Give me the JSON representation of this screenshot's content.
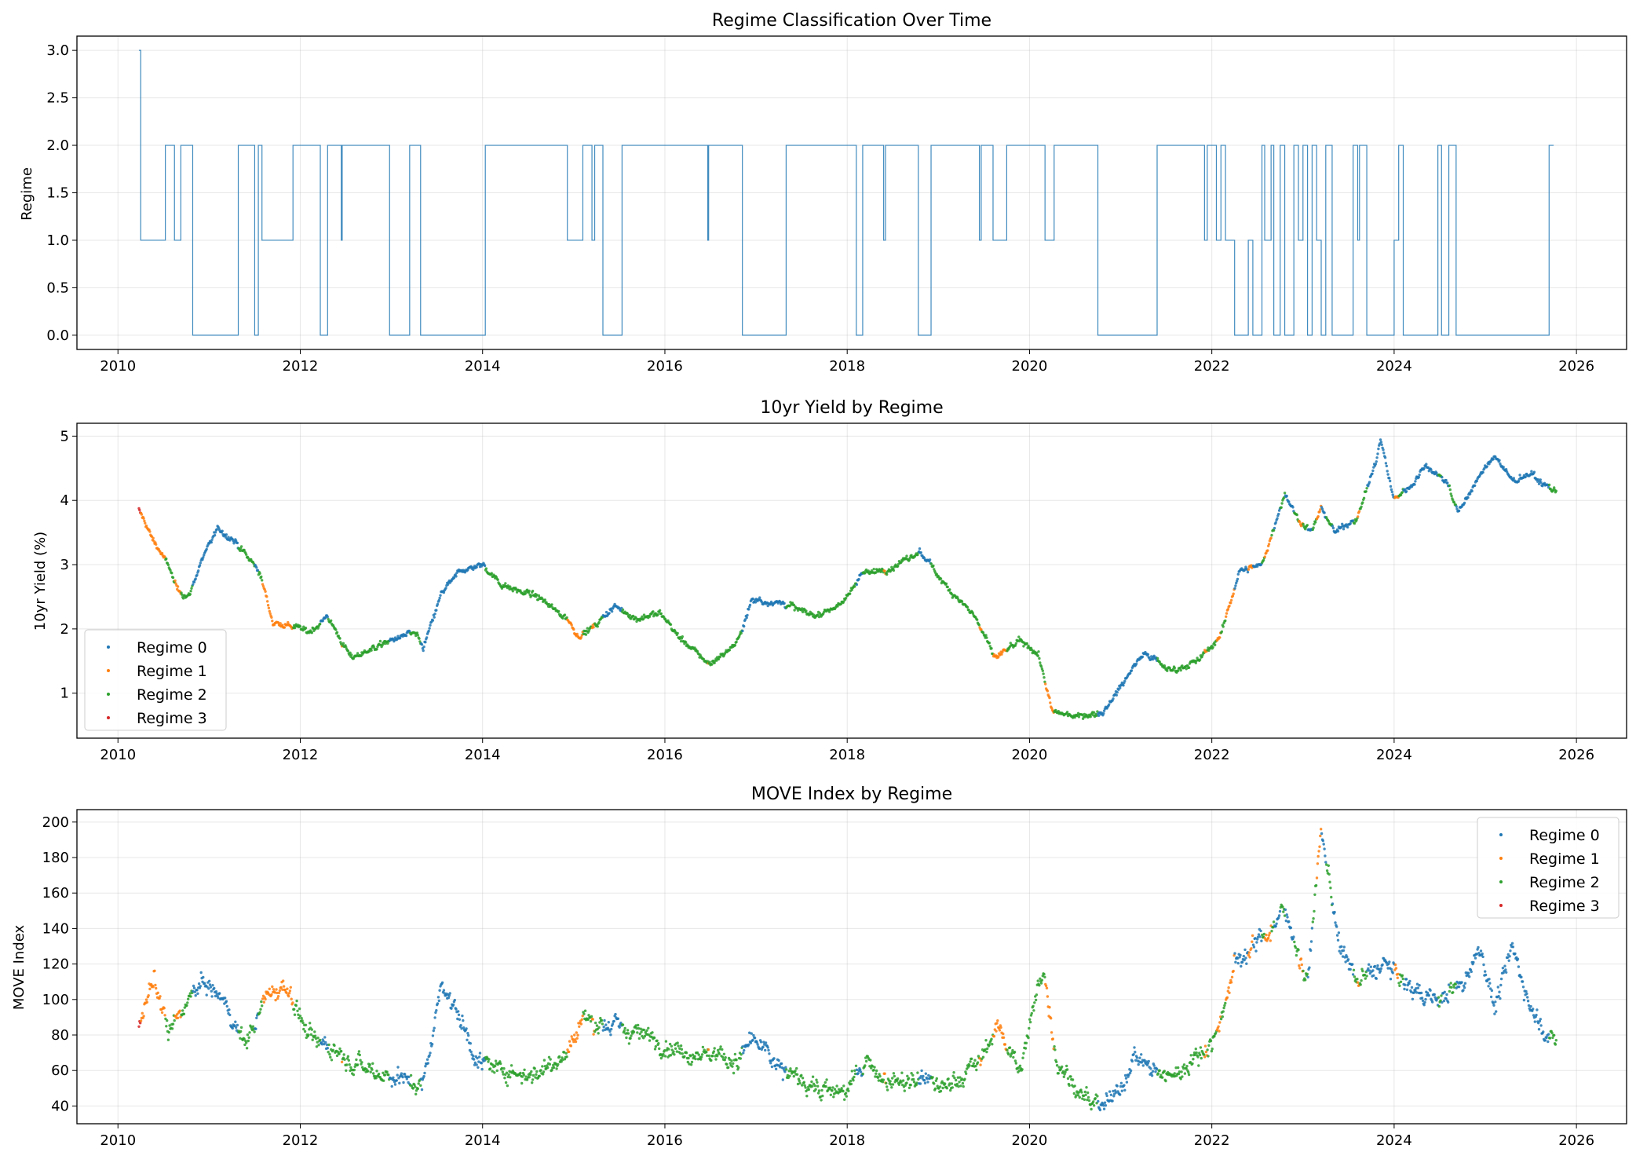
{
  "chart_data": [
    {
      "type": "line",
      "title": "Regime Classification Over Time",
      "xlabel": "",
      "ylabel": "Regime",
      "xlim": [
        2009.55,
        2026.55
      ],
      "ylim": [
        -0.15,
        3.15
      ],
      "grid": true,
      "x_ticks": [
        "2010",
        "2012",
        "2014",
        "2016",
        "2018",
        "2020",
        "2022",
        "2024",
        "2026"
      ],
      "y_ticks": [
        "0.0",
        "0.5",
        "1.0",
        "1.5",
        "2.0",
        "2.5",
        "3.0"
      ],
      "color": "#1f77b4",
      "series": [
        {
          "values": [
            [
              2010.23,
              3
            ],
            [
              2010.25,
              1
            ],
            [
              2010.52,
              2
            ],
            [
              2010.62,
              1
            ],
            [
              2010.69,
              2
            ],
            [
              2010.82,
              0
            ],
            [
              2011.32,
              2
            ],
            [
              2011.5,
              0
            ],
            [
              2011.54,
              2
            ],
            [
              2011.58,
              1
            ],
            [
              2011.92,
              2
            ],
            [
              2012.22,
              0
            ],
            [
              2012.3,
              2
            ],
            [
              2012.45,
              1
            ],
            [
              2012.46,
              2
            ],
            [
              2012.98,
              0
            ],
            [
              2013.2,
              2
            ],
            [
              2013.32,
              0
            ],
            [
              2014.03,
              2
            ],
            [
              2014.93,
              1
            ],
            [
              2015.1,
              2
            ],
            [
              2015.2,
              1
            ],
            [
              2015.23,
              2
            ],
            [
              2015.32,
              0
            ],
            [
              2015.53,
              2
            ],
            [
              2016.47,
              1
            ],
            [
              2016.48,
              2
            ],
            [
              2016.85,
              0
            ],
            [
              2017.33,
              2
            ],
            [
              2018.1,
              0
            ],
            [
              2018.17,
              2
            ],
            [
              2018.4,
              1
            ],
            [
              2018.42,
              2
            ],
            [
              2018.78,
              0
            ],
            [
              2018.92,
              2
            ],
            [
              2019.45,
              1
            ],
            [
              2019.47,
              2
            ],
            [
              2019.6,
              1
            ],
            [
              2019.75,
              2
            ],
            [
              2020.17,
              1
            ],
            [
              2020.27,
              2
            ],
            [
              2020.75,
              0
            ],
            [
              2021.4,
              2
            ],
            [
              2021.92,
              1
            ],
            [
              2021.95,
              2
            ],
            [
              2022.05,
              1
            ],
            [
              2022.1,
              2
            ],
            [
              2022.15,
              1
            ],
            [
              2022.25,
              0
            ],
            [
              2022.4,
              1
            ],
            [
              2022.45,
              0
            ],
            [
              2022.55,
              2
            ],
            [
              2022.58,
              1
            ],
            [
              2022.65,
              2
            ],
            [
              2022.68,
              0
            ],
            [
              2022.75,
              2
            ],
            [
              2022.8,
              0
            ],
            [
              2022.9,
              2
            ],
            [
              2022.95,
              1
            ],
            [
              2023.0,
              2
            ],
            [
              2023.05,
              0
            ],
            [
              2023.1,
              2
            ],
            [
              2023.15,
              1
            ],
            [
              2023.2,
              0
            ],
            [
              2023.25,
              2
            ],
            [
              2023.32,
              0
            ],
            [
              2023.55,
              2
            ],
            [
              2023.6,
              1
            ],
            [
              2023.62,
              2
            ],
            [
              2023.7,
              0
            ],
            [
              2024.0,
              1
            ],
            [
              2024.05,
              2
            ],
            [
              2024.1,
              0
            ],
            [
              2024.48,
              2
            ],
            [
              2024.52,
              0
            ],
            [
              2024.6,
              2
            ],
            [
              2024.68,
              0
            ],
            [
              2025.7,
              2
            ],
            [
              2025.75,
              2
            ]
          ]
        }
      ]
    },
    {
      "type": "scatter",
      "title": "10yr Yield by Regime",
      "xlabel": "",
      "ylabel": "10yr Yield (%)",
      "xlim": [
        2009.55,
        2026.55
      ],
      "ylim": [
        0.3,
        5.2
      ],
      "grid": true,
      "legend_position": "lower left",
      "x_ticks": [
        "2010",
        "2012",
        "2014",
        "2016",
        "2018",
        "2020",
        "2022",
        "2024",
        "2026"
      ],
      "y_ticks": [
        "1",
        "2",
        "3",
        "4",
        "5"
      ],
      "series": [
        {
          "name": "Regime 0",
          "color": "#1f77b4"
        },
        {
          "name": "Regime 1",
          "color": "#ff7f0e"
        },
        {
          "name": "Regime 2",
          "color": "#2ca02c"
        },
        {
          "name": "Regime 3",
          "color": "#d62728"
        }
      ],
      "anchors": [
        [
          2010.23,
          3.85
        ],
        [
          2010.4,
          3.35
        ],
        [
          2010.55,
          3.0
        ],
        [
          2010.65,
          2.6
        ],
        [
          2010.78,
          2.5
        ],
        [
          2010.95,
          3.2
        ],
        [
          2011.1,
          3.55
        ],
        [
          2011.25,
          3.4
        ],
        [
          2011.55,
          2.9
        ],
        [
          2011.7,
          2.1
        ],
        [
          2011.9,
          2.05
        ],
        [
          2012.1,
          1.95
        ],
        [
          2012.3,
          2.2
        ],
        [
          2012.55,
          1.55
        ],
        [
          2012.8,
          1.7
        ],
        [
          2013.05,
          1.85
        ],
        [
          2013.25,
          1.95
        ],
        [
          2013.35,
          1.7
        ],
        [
          2013.55,
          2.55
        ],
        [
          2013.75,
          2.9
        ],
        [
          2014.0,
          3.0
        ],
        [
          2014.2,
          2.7
        ],
        [
          2014.6,
          2.5
        ],
        [
          2014.9,
          2.2
        ],
        [
          2015.05,
          1.9
        ],
        [
          2015.2,
          2.0
        ],
        [
          2015.45,
          2.35
        ],
        [
          2015.7,
          2.15
        ],
        [
          2015.95,
          2.25
        ],
        [
          2016.2,
          1.8
        ],
        [
          2016.5,
          1.45
        ],
        [
          2016.8,
          1.8
        ],
        [
          2016.95,
          2.45
        ],
        [
          2017.3,
          2.4
        ],
        [
          2017.65,
          2.2
        ],
        [
          2017.95,
          2.4
        ],
        [
          2018.15,
          2.85
        ],
        [
          2018.5,
          2.95
        ],
        [
          2018.8,
          3.2
        ],
        [
          2019.1,
          2.65
        ],
        [
          2019.4,
          2.2
        ],
        [
          2019.62,
          1.55
        ],
        [
          2019.9,
          1.8
        ],
        [
          2020.1,
          1.6
        ],
        [
          2020.25,
          0.7
        ],
        [
          2020.55,
          0.65
        ],
        [
          2020.8,
          0.7
        ],
        [
          2021.0,
          1.1
        ],
        [
          2021.25,
          1.65
        ],
        [
          2021.55,
          1.35
        ],
        [
          2021.85,
          1.5
        ],
        [
          2022.1,
          1.9
        ],
        [
          2022.3,
          2.9
        ],
        [
          2022.55,
          3.0
        ],
        [
          2022.8,
          4.1
        ],
        [
          2022.95,
          3.7
        ],
        [
          2023.1,
          3.5
        ],
        [
          2023.2,
          3.9
        ],
        [
          2023.35,
          3.5
        ],
        [
          2023.6,
          3.75
        ],
        [
          2023.8,
          4.6
        ],
        [
          2023.85,
          4.95
        ],
        [
          2024.0,
          4.0
        ],
        [
          2024.2,
          4.25
        ],
        [
          2024.35,
          4.55
        ],
        [
          2024.6,
          4.25
        ],
        [
          2024.7,
          3.8
        ],
        [
          2024.95,
          4.4
        ],
        [
          2025.1,
          4.7
        ],
        [
          2025.3,
          4.3
        ],
        [
          2025.5,
          4.4
        ],
        [
          2025.75,
          4.15
        ]
      ]
    },
    {
      "type": "scatter",
      "title": "MOVE Index by Regime",
      "xlabel": "",
      "ylabel": "MOVE Index",
      "xlim": [
        2009.55,
        2026.55
      ],
      "ylim": [
        30,
        207
      ],
      "grid": true,
      "legend_position": "upper right",
      "x_ticks": [
        "2010",
        "2012",
        "2014",
        "2016",
        "2018",
        "2020",
        "2022",
        "2024",
        "2026"
      ],
      "y_ticks": [
        "40",
        "60",
        "80",
        "100",
        "120",
        "140",
        "160",
        "180",
        "200"
      ],
      "series": [
        {
          "name": "Regime 0",
          "color": "#1f77b4"
        },
        {
          "name": "Regime 1",
          "color": "#ff7f0e"
        },
        {
          "name": "Regime 2",
          "color": "#2ca02c"
        },
        {
          "name": "Regime 3",
          "color": "#d62728"
        }
      ],
      "anchors": [
        [
          2010.23,
          88
        ],
        [
          2010.4,
          110
        ],
        [
          2010.55,
          80
        ],
        [
          2010.7,
          95
        ],
        [
          2010.95,
          110
        ],
        [
          2011.2,
          95
        ],
        [
          2011.4,
          75
        ],
        [
          2011.6,
          100
        ],
        [
          2011.85,
          108
        ],
        [
          2012.1,
          78
        ],
        [
          2012.3,
          75
        ],
        [
          2012.6,
          65
        ],
        [
          2012.9,
          58
        ],
        [
          2013.15,
          55
        ],
        [
          2013.35,
          52
        ],
        [
          2013.55,
          110
        ],
        [
          2013.75,
          90
        ],
        [
          2013.95,
          65
        ],
        [
          2014.2,
          60
        ],
        [
          2014.6,
          58
        ],
        [
          2014.95,
          72
        ],
        [
          2015.1,
          90
        ],
        [
          2015.4,
          85
        ],
        [
          2015.8,
          80
        ],
        [
          2016.1,
          72
        ],
        [
          2016.4,
          70
        ],
        [
          2016.8,
          65
        ],
        [
          2016.95,
          78
        ],
        [
          2017.3,
          60
        ],
        [
          2017.7,
          50
        ],
        [
          2018.0,
          48
        ],
        [
          2018.2,
          65
        ],
        [
          2018.5,
          52
        ],
        [
          2018.85,
          55
        ],
        [
          2019.1,
          50
        ],
        [
          2019.45,
          65
        ],
        [
          2019.65,
          85
        ],
        [
          2019.9,
          60
        ],
        [
          2020.15,
          120
        ],
        [
          2020.3,
          65
        ],
        [
          2020.6,
          45
        ],
        [
          2020.75,
          38
        ],
        [
          2020.95,
          45
        ],
        [
          2021.15,
          68
        ],
        [
          2021.5,
          55
        ],
        [
          2021.85,
          68
        ],
        [
          2022.05,
          80
        ],
        [
          2022.25,
          120
        ],
        [
          2022.55,
          135
        ],
        [
          2022.8,
          150
        ],
        [
          2023.05,
          110
        ],
        [
          2023.2,
          195
        ],
        [
          2023.4,
          130
        ],
        [
          2023.6,
          110
        ],
        [
          2023.9,
          120
        ],
        [
          2024.2,
          105
        ],
        [
          2024.5,
          100
        ],
        [
          2024.75,
          110
        ],
        [
          2024.95,
          130
        ],
        [
          2025.1,
          95
        ],
        [
          2025.3,
          130
        ],
        [
          2025.5,
          95
        ],
        [
          2025.75,
          75
        ]
      ]
    }
  ]
}
